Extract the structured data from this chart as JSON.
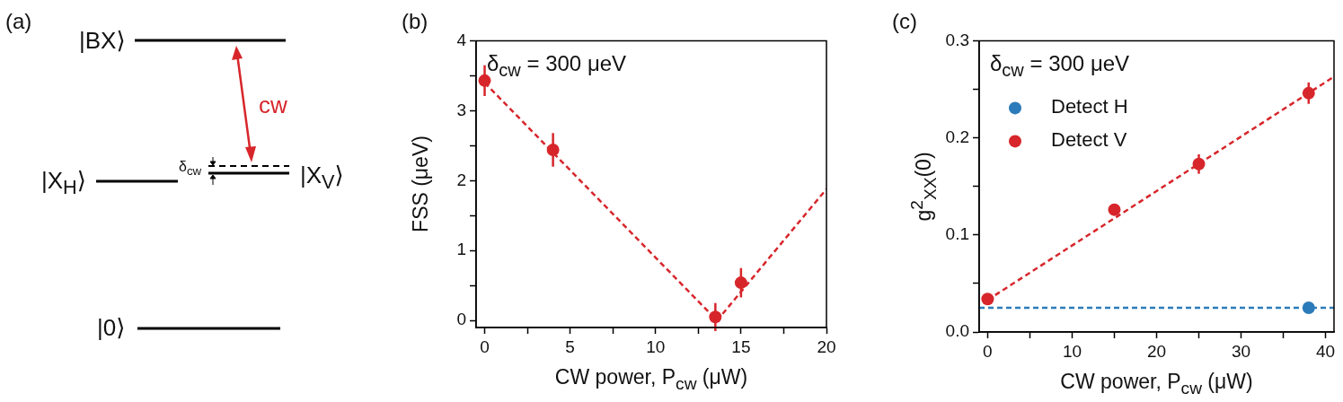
{
  "chart_data": [
    {
      "type": "other",
      "title": "(a)",
      "annotations": [
        "|BX⟩",
        "|X$_{H}$⟩",
        "δ$_{cw}$",
        "|X$_{V}$⟩",
        "|0⟩",
        "cw"
      ]
    },
    {
      "type": "scatter",
      "title": "(b)",
      "xlabel": "CW power, P$_{cw}$ (μW)",
      "ylabel": "FSS (μeV)",
      "annotations": [
        "δ$_{cw}$ = 300 μeV"
      ],
      "xlim": [
        -0.5,
        20
      ],
      "ylim": [
        -0.1,
        4
      ],
      "xticks": [
        0,
        {
          "value": 2.5,
          "label": null
        },
        5,
        {
          "value": 7.5,
          "label": null
        },
        10,
        {
          "value": 12.5,
          "label": null
        },
        15,
        {
          "value": 17.5,
          "label": null
        },
        20
      ],
      "yticks": [
        0,
        {
          "value": 0.5,
          "label": null
        },
        1,
        {
          "value": 1.5,
          "label": null
        },
        2,
        {
          "value": 2.5,
          "label": null
        },
        3,
        {
          "value": 3.5,
          "label": null
        },
        4
      ],
      "series": [
        {
          "type": "scatter",
          "color": "#d7262b",
          "marker": "circle",
          "x": [
            0,
            4,
            13.5,
            15
          ],
          "values": [
            3.43,
            2.44,
            0.05,
            0.54
          ],
          "errors": [
            0.22,
            0.24,
            0.2,
            0.21
          ]
        },
        {
          "type": "line",
          "color": "#d7262b",
          "marker": "none",
          "line_style": "dashed",
          "x": [
            0,
            13.6,
            20
          ],
          "values": [
            3.4,
            0,
            1.88
          ]
        }
      ]
    },
    {
      "type": "scatter",
      "title": "(c)",
      "xlabel": "CW power, P$_{cw}$ (μW)",
      "ylabel": "g$^{2}$$_{XX}$(0)",
      "annotations": [
        "δ$_{cw}$ = 300 μeV"
      ],
      "legend": "top left",
      "xlim": [
        -1,
        41
      ],
      "ylim": [
        0,
        0.3
      ],
      "xticks": [
        0,
        {
          "value": 5,
          "label": null
        },
        10,
        {
          "value": 15,
          "label": null
        },
        20,
        {
          "value": 25,
          "label": null
        },
        30,
        {
          "value": 35,
          "label": null
        },
        40
      ],
      "yticks": [
        {
          "value": 0,
          "label": "0.0"
        },
        {
          "value": 0.05,
          "label": null
        },
        0.1,
        {
          "value": 0.15,
          "label": null
        },
        0.2,
        {
          "value": 0.25,
          "label": null
        },
        0.3
      ],
      "series": [
        {
          "type": "scatter",
          "name": "Detect H",
          "color": "#2b7bba",
          "marker": "circle",
          "x": [
            38
          ],
          "values": [
            0.025
          ]
        },
        {
          "type": "scatter",
          "name": "Detect V",
          "color": "#d7262b",
          "marker": "circle",
          "x": [
            0,
            15,
            25,
            38
          ],
          "values": [
            0.034,
            0.126,
            0.173,
            0.246
          ],
          "errors": [
            0.004,
            0.005,
            0.01,
            0.011
          ]
        },
        {
          "type": "line",
          "color": "#2b7bba",
          "marker": "none",
          "line_style": "dashed",
          "x": [
            -1,
            41
          ],
          "values": [
            0.025,
            0.025
          ]
        },
        {
          "type": "line",
          "color": "#d7262b",
          "marker": "none",
          "line_style": "dashed",
          "x": [
            0,
            41
          ],
          "values": [
            0.033,
            0.263
          ]
        }
      ]
    }
  ]
}
